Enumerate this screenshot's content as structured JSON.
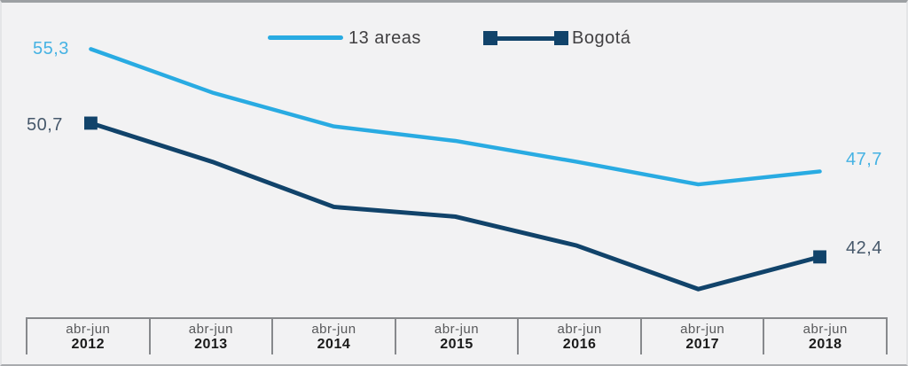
{
  "canvas": {
    "background": "#F2F2F3",
    "frame_top_color": "#9DA0A3",
    "frame_side_color": "#E4E5E7"
  },
  "legend": {
    "items": [
      {
        "label": "13 areas",
        "color": "#29ABE2",
        "swatch": "line"
      },
      {
        "label": "Bogotá",
        "color": "#11436A",
        "swatch": "line-with-squares"
      }
    ]
  },
  "chart_data": {
    "type": "line",
    "categories": [
      "abr-jun 2012",
      "abr-jun 2013",
      "abr-jun 2014",
      "abr-jun 2015",
      "abr-jun 2016",
      "abr-jun 2017",
      "abr-jun 2018"
    ],
    "x_axis": {
      "period": "abr-jun",
      "years": [
        "2012",
        "2013",
        "2014",
        "2015",
        "2016",
        "2017",
        "2018"
      ]
    },
    "series": [
      {
        "name": "13 areas",
        "color": "#29ABE2",
        "values": [
          55.3,
          52.6,
          50.5,
          49.6,
          48.3,
          46.9,
          47.7
        ],
        "markers": "none",
        "label_start": "55,3",
        "label_end": "47,7",
        "label_color": "#45B2E3"
      },
      {
        "name": "Bogotá",
        "color": "#11436A",
        "values": [
          50.7,
          48.3,
          45.5,
          44.9,
          43.1,
          40.4,
          42.4
        ],
        "markers": "endpoint-squares",
        "label_start": "50,7",
        "label_end": "42,4",
        "label_color": "#46586B"
      }
    ],
    "ylim": [
      38,
      58
    ],
    "grid": false,
    "legend_position": "top-center",
    "title": "",
    "xlabel": "",
    "ylabel": ""
  }
}
